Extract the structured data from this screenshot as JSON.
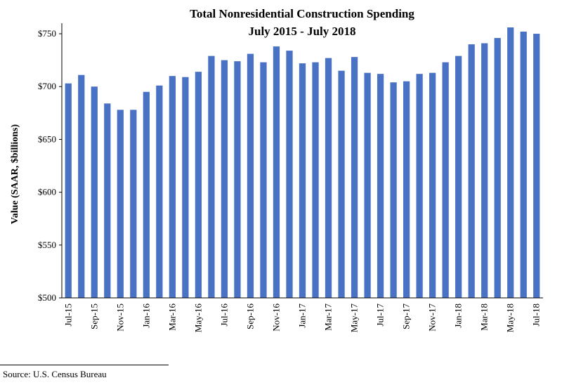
{
  "chart_data": {
    "type": "bar",
    "title": "Total Nonresidential Construction Spending",
    "subtitle": "July 2015 - July 2018",
    "xlabel": "",
    "ylabel": "Value (SAAR, $billions)",
    "ylim": [
      500,
      760
    ],
    "yticks": [
      500,
      550,
      600,
      650,
      700,
      750
    ],
    "ytick_labels": [
      "$500",
      "$550",
      "$600",
      "$650",
      "$700",
      "$750"
    ],
    "grid": false,
    "bar_color": "#4a72c4",
    "categories": [
      "Jul-15",
      "Aug-15",
      "Sep-15",
      "Oct-15",
      "Nov-15",
      "Dec-15",
      "Jan-16",
      "Feb-16",
      "Mar-16",
      "Apr-16",
      "May-16",
      "Jun-16",
      "Jul-16",
      "Aug-16",
      "Sep-16",
      "Oct-16",
      "Nov-16",
      "Dec-16",
      "Jan-17",
      "Feb-17",
      "Mar-17",
      "Apr-17",
      "May-17",
      "Jun-17",
      "Jul-17",
      "Aug-17",
      "Sep-17",
      "Oct-17",
      "Nov-17",
      "Dec-17",
      "Jan-18",
      "Feb-18",
      "Mar-18",
      "Apr-18",
      "May-18",
      "Jun-18",
      "Jul-18"
    ],
    "xtick_labels": [
      "Jul-15",
      "Sep-15",
      "Nov-15",
      "Jan-16",
      "Mar-16",
      "May-16",
      "Jul-16",
      "Sep-16",
      "Nov-16",
      "Jan-17",
      "Mar-17",
      "May-17",
      "Jul-17",
      "Sep-17",
      "Nov-17",
      "Jan-18",
      "Mar-18",
      "May-18",
      "Jul-18"
    ],
    "values": [
      703,
      711,
      700,
      684,
      678,
      678,
      695,
      701,
      710,
      709,
      714,
      729,
      725,
      724,
      731,
      723,
      738,
      734,
      722,
      723,
      727,
      715,
      728,
      713,
      712,
      704,
      705,
      712,
      713,
      723,
      729,
      740,
      741,
      746,
      756,
      752,
      750
    ]
  },
  "source": "Source:  U.S. Census Bureau"
}
